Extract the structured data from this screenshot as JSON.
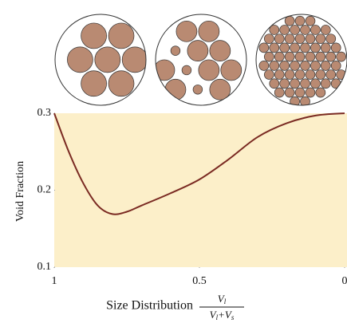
{
  "chart_data": {
    "type": "line",
    "y_label": "Void Fraction",
    "x_label": "Size Distribution",
    "x_label_fraction": {
      "numerator": [
        "V",
        "l"
      ],
      "denominator": [
        "V",
        "l",
        "+V",
        "s"
      ]
    },
    "x": [
      1,
      0.95,
      0.9,
      0.85,
      0.8,
      0.75,
      0.7,
      0.6,
      0.5,
      0.4,
      0.3,
      0.2,
      0.1,
      0
    ],
    "values": [
      0.3,
      0.25,
      0.209,
      0.18,
      0.169,
      0.172,
      0.18,
      0.196,
      0.214,
      0.24,
      0.269,
      0.287,
      0.297,
      0.3
    ],
    "color": "#7a2a22",
    "background": "#fcefc9",
    "xlim": [
      1,
      0
    ],
    "ylim": [
      0.1,
      0.3
    ],
    "xticks": [
      1,
      0.5,
      0
    ],
    "yticks": [
      0.1,
      0.2,
      0.3
    ]
  }
}
